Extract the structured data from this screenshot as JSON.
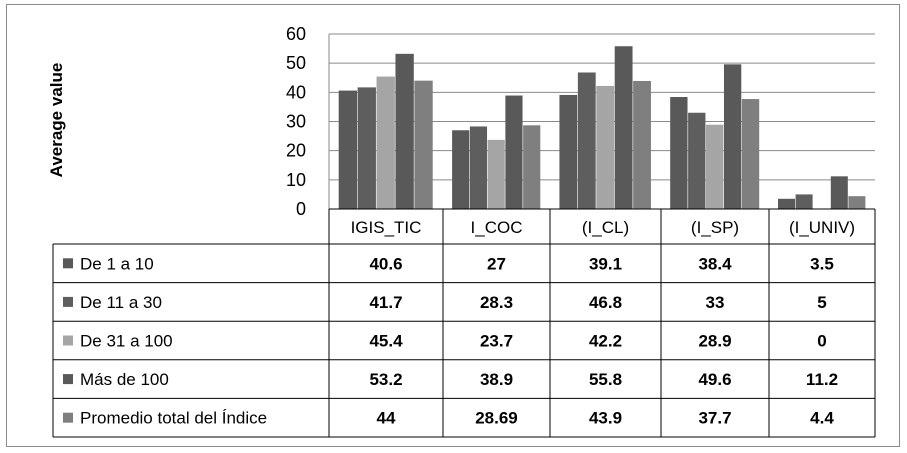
{
  "chart_data": {
    "type": "bar",
    "title": "",
    "xlabel": "",
    "ylabel": "Average value",
    "ylim": [
      0,
      60
    ],
    "yticks": [
      0,
      10,
      20,
      30,
      40,
      50,
      60
    ],
    "grid": true,
    "legend": "data-table-left",
    "categories": [
      "IGIS_TIC",
      "I_COC",
      "(I_CL)",
      "(I_SP)",
      "(I_UNIV)"
    ],
    "series": [
      {
        "name": "De 1 a 10",
        "color": "#595959",
        "values": [
          40.6,
          27,
          39.1,
          38.4,
          3.5
        ]
      },
      {
        "name": "De 11 a 30",
        "color": "#5e5e5e",
        "values": [
          41.7,
          28.3,
          46.8,
          33,
          5
        ]
      },
      {
        "name": "De 31 a 100",
        "color": "#a5a5a5",
        "values": [
          45.4,
          23.7,
          42.2,
          28.9,
          0
        ]
      },
      {
        "name": "Más de 100",
        "color": "#595959",
        "values": [
          53.2,
          38.9,
          55.8,
          49.6,
          11.2
        ]
      },
      {
        "name": "Promedio total del Índice",
        "color": "#7f7f7f",
        "values": [
          44,
          28.69,
          43.9,
          37.7,
          4.4
        ]
      }
    ]
  }
}
